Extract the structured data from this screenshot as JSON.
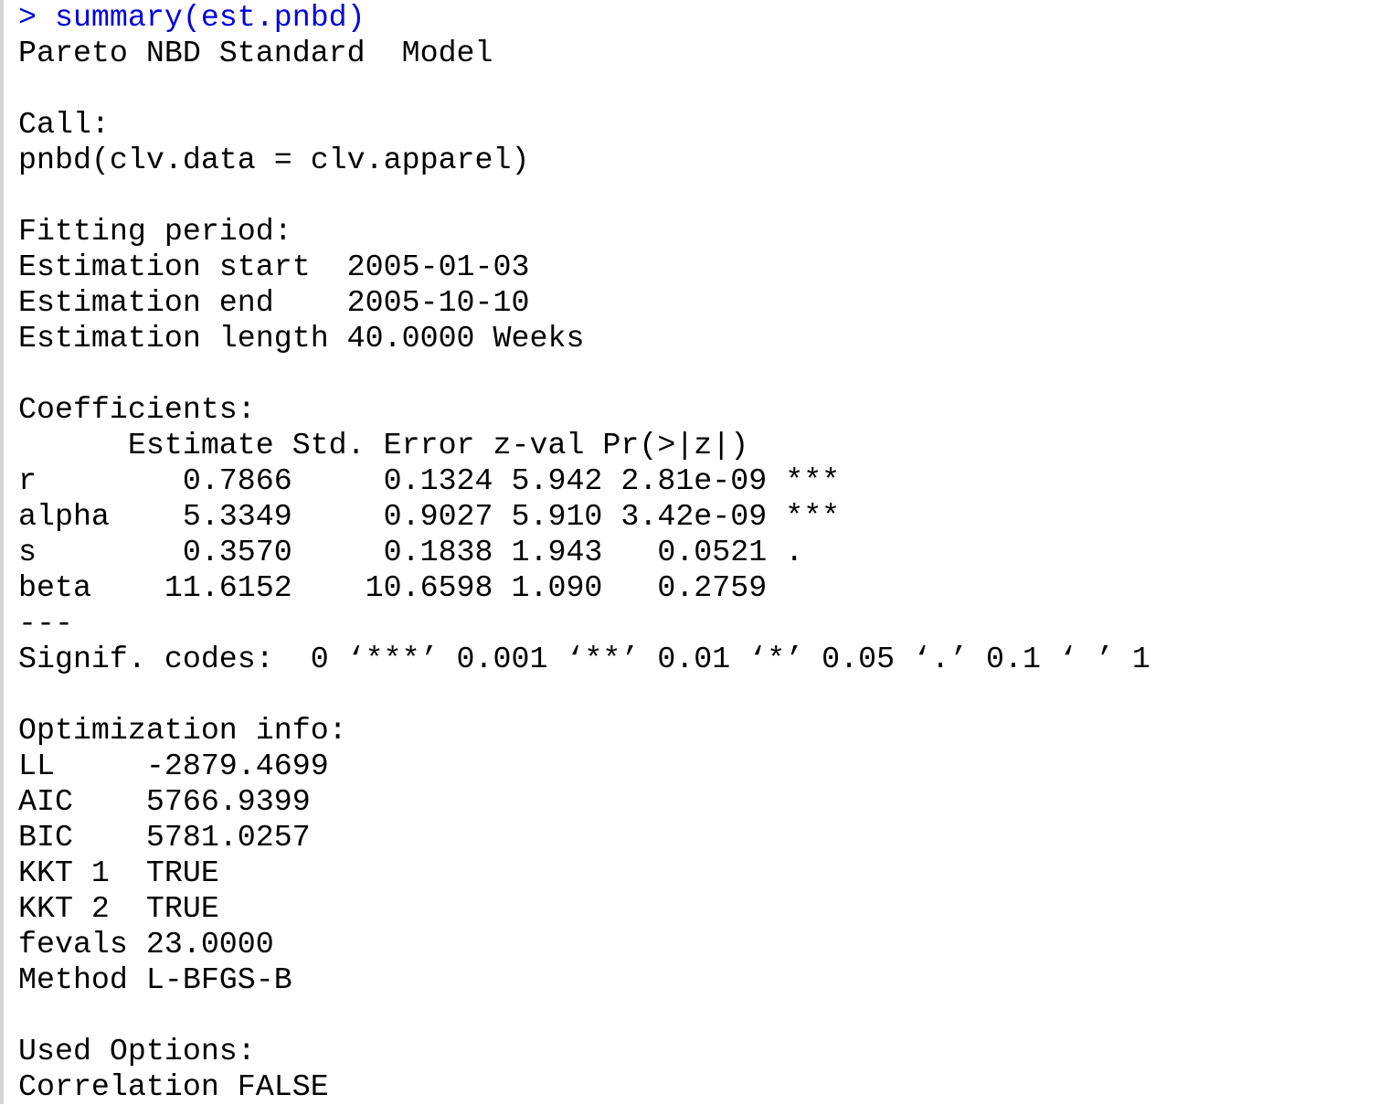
{
  "console": {
    "command": "> summary(est.pnbd)",
    "output": [
      "Pareto NBD Standard  Model",
      "",
      "Call:",
      "pnbd(clv.data = clv.apparel)",
      "",
      "Fitting period:",
      "Estimation start  2005-01-03",
      "Estimation end    2005-10-10",
      "Estimation length 40.0000 Weeks",
      "",
      "Coefficients:",
      "      Estimate Std. Error z-val Pr(>|z|)",
      "r        0.7866     0.1324 5.942 2.81e-09 ***",
      "alpha    5.3349     0.9027 5.910 3.42e-09 ***",
      "s        0.3570     0.1838 1.943   0.0521 .",
      "beta    11.6152    10.6598 1.090   0.2759",
      "---",
      "Signif. codes:  0 ‘***’ 0.001 ‘**’ 0.01 ‘*’ 0.05 ‘.’ 0.1 ‘ ’ 1",
      "",
      "Optimization info:",
      "LL     -2879.4699",
      "AIC    5766.9399",
      "BIC    5781.0257",
      "KKT 1  TRUE",
      "KKT 2  TRUE",
      "fevals 23.0000",
      "Method L-BFGS-B",
      "",
      "Used Options:",
      "Correlation FALSE"
    ],
    "command_color": "#0000dd"
  }
}
